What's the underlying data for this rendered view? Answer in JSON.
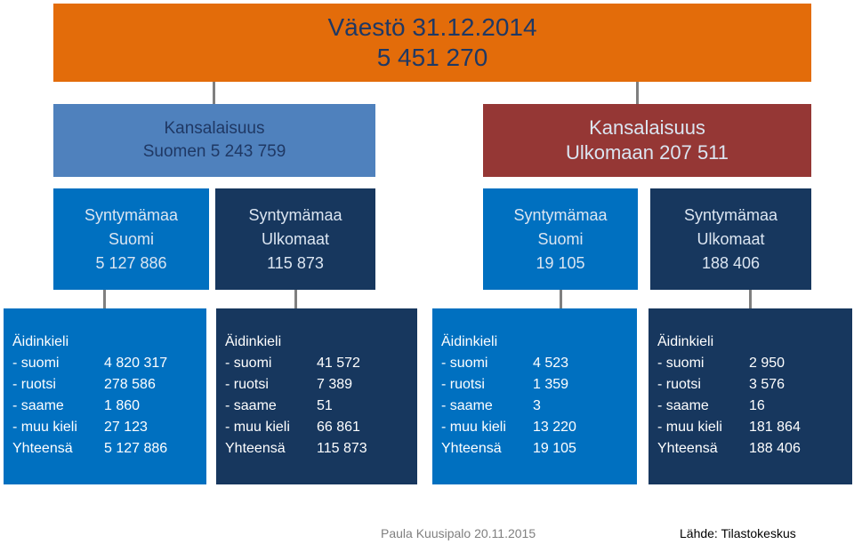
{
  "title": {
    "line1": "Väestö 31.12.2014",
    "line2": "5 451 270"
  },
  "citizenship": {
    "finland": {
      "line1": "Kansalaisuus",
      "line2": "Suomen 5 243 759"
    },
    "abroad": {
      "line1": "Kansalaisuus",
      "line2": "Ulkomaan 207 511"
    }
  },
  "birthplace": [
    {
      "line1": "Syntymämaa",
      "line2": "Suomi",
      "line3": "5 127 886"
    },
    {
      "line1": "Syntymämaa",
      "line2": "Ulkomaat",
      "line3": "115 873"
    },
    {
      "line1": "Syntymämaa",
      "line2": "Suomi",
      "line3": "19 105"
    },
    {
      "line1": "Syntymämaa",
      "line2": "Ulkomaat",
      "line3": "188 406"
    }
  ],
  "language_header": "Äidinkieli",
  "language_labels": [
    "- suomi",
    "- ruotsi",
    "- saame",
    "- muu kieli",
    "Yhteensä"
  ],
  "language_boxes": [
    {
      "values": [
        "4 820 317",
        "278 586",
        "1 860",
        "27 123",
        "5 127 886"
      ]
    },
    {
      "values": [
        "41 572",
        "7 389",
        "51",
        "66 861",
        "115 873"
      ]
    },
    {
      "values": [
        "4 523",
        "1 359",
        "3",
        "13 220",
        "19 105"
      ]
    },
    {
      "values": [
        "2 950",
        "3 576",
        "16",
        "181 864",
        "188 406"
      ]
    }
  ],
  "footer": {
    "author": "Paula Kuusipalo 20.11.2015",
    "source": "Lähde: Tilastokeskus"
  },
  "colors": {
    "orange": "#e36c0a",
    "steel_blue": "#4f81bd",
    "dark_red": "#953735",
    "bright_blue": "#0070c0",
    "navy": "#17375e",
    "connector": "#7f7f7f"
  }
}
